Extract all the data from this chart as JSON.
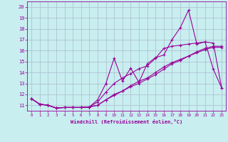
{
  "xlabel": "Windchill (Refroidissement éolien,°C)",
  "bg_color": "#c8eef0",
  "grid_color": "#aabbcc",
  "line_color": "#990099",
  "xlim": [
    -0.5,
    23.5
  ],
  "ylim": [
    10.5,
    20.5
  ],
  "xticks": [
    0,
    1,
    2,
    3,
    4,
    5,
    6,
    7,
    8,
    9,
    10,
    11,
    12,
    13,
    14,
    15,
    16,
    17,
    18,
    19,
    20,
    21,
    22,
    23
  ],
  "yticks": [
    11,
    12,
    13,
    14,
    15,
    16,
    17,
    18,
    19,
    20
  ],
  "line1_x": [
    0,
    1,
    2,
    3,
    4,
    5,
    6,
    7,
    8,
    9,
    10,
    11,
    12,
    13,
    14,
    15,
    16,
    17,
    18,
    19,
    20,
    21,
    22,
    23
  ],
  "line1_y": [
    11.6,
    11.1,
    11.0,
    10.75,
    10.8,
    10.8,
    10.8,
    10.85,
    11.0,
    11.5,
    12.0,
    12.3,
    12.7,
    13.0,
    13.4,
    13.8,
    14.3,
    14.8,
    15.1,
    15.5,
    15.8,
    16.1,
    16.3,
    16.3
  ],
  "line2_x": [
    0,
    1,
    2,
    3,
    4,
    5,
    6,
    7,
    8,
    9,
    10,
    11,
    12,
    13,
    14,
    15,
    16,
    17,
    18,
    19,
    20,
    21,
    22,
    23
  ],
  "line2_y": [
    11.6,
    11.1,
    11.0,
    10.75,
    10.8,
    10.8,
    10.8,
    10.85,
    11.3,
    12.2,
    13.0,
    13.5,
    13.9,
    14.35,
    14.6,
    15.3,
    16.2,
    16.4,
    16.5,
    16.6,
    16.7,
    16.8,
    16.7,
    12.6
  ],
  "line3_x": [
    0,
    1,
    2,
    3,
    4,
    5,
    6,
    7,
    8,
    9,
    10,
    11,
    12,
    13,
    14,
    15,
    16,
    17,
    18,
    19,
    20,
    21,
    22,
    23
  ],
  "line3_y": [
    11.6,
    11.1,
    11.0,
    10.75,
    10.8,
    10.8,
    10.8,
    10.85,
    11.5,
    13.0,
    15.3,
    13.2,
    14.4,
    13.1,
    14.8,
    15.35,
    15.6,
    17.0,
    18.1,
    19.7,
    16.6,
    16.8,
    14.3,
    12.6
  ],
  "line4_x": [
    0,
    1,
    2,
    3,
    4,
    5,
    6,
    7,
    8,
    9,
    10,
    11,
    12,
    13,
    14,
    15,
    16,
    17,
    18,
    19,
    20,
    21,
    22,
    23
  ],
  "line4_y": [
    11.6,
    11.1,
    11.0,
    10.75,
    10.8,
    10.8,
    10.8,
    10.85,
    11.0,
    11.5,
    11.9,
    12.3,
    12.8,
    13.2,
    13.5,
    14.0,
    14.5,
    14.9,
    15.2,
    15.5,
    15.9,
    16.2,
    16.4,
    16.4
  ]
}
